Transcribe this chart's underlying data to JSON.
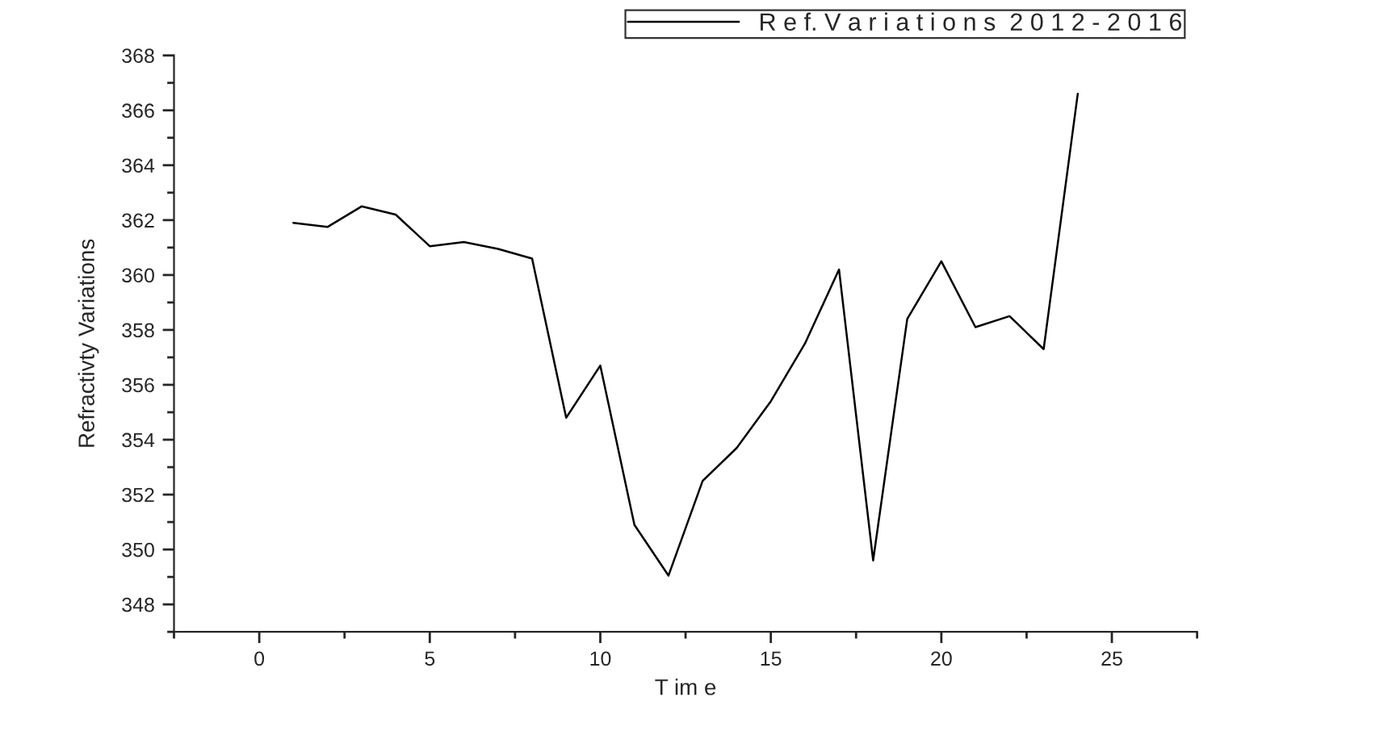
{
  "chart_data": {
    "type": "line",
    "xlabel": "T im e",
    "ylabel": "Refractivty Variations",
    "x": [
      1,
      2,
      3,
      4,
      5,
      6,
      7,
      8,
      9,
      10,
      11,
      12,
      13,
      14,
      15,
      16,
      17,
      18,
      19,
      20,
      21,
      22,
      23,
      24
    ],
    "series": [
      {
        "name": "R e f. V a r i a t i o n s  2 0 1 2 - 2 0 1 6",
        "color": "#000000",
        "values": [
          361.9,
          361.75,
          362.5,
          362.2,
          361.05,
          361.2,
          360.95,
          360.6,
          354.8,
          356.7,
          350.9,
          349.05,
          352.5,
          353.7,
          355.4,
          357.5,
          360.2,
          349.6,
          358.4,
          360.5,
          358.1,
          358.5,
          357.3,
          366.6
        ]
      }
    ],
    "xlim": [
      -2.5,
      27.5
    ],
    "xticks": [
      0,
      5,
      10,
      15,
      20,
      25
    ],
    "ylim": [
      347,
      368
    ],
    "yticks": [
      348,
      350,
      352,
      354,
      356,
      358,
      360,
      362,
      364,
      366,
      368
    ],
    "grid": false,
    "legend": "top right",
    "marker": "none",
    "line_style": "solid"
  }
}
